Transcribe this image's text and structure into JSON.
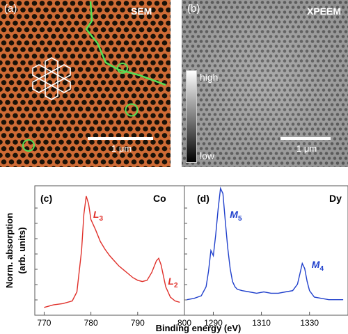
{
  "panel_a": {
    "label": "(a)",
    "technique": "SEM",
    "scale_label": "1 μm",
    "bg_color": "#cf6b35",
    "hole_color": "#1a1208"
  },
  "panel_b": {
    "label": "(b)",
    "technique": "XPEEM",
    "scale_label": "1 μm",
    "colorbar_high": "high",
    "colorbar_low": "low"
  },
  "chart_data": [
    {
      "type": "line",
      "panel_label": "(c)",
      "element": "Co",
      "xlabel": "Binding energy (eV)",
      "ylabel": "Norm. absorption (arb. units)",
      "xlim": [
        768,
        800
      ],
      "x_ticks": [
        "770",
        "780",
        "790",
        "800"
      ],
      "color": "#e0302a",
      "peaks": [
        {
          "label": "L",
          "sub": "3",
          "x": 779
        },
        {
          "label": "L",
          "sub": "2",
          "x": 795
        }
      ],
      "series": [
        {
          "x": [
            770,
            772,
            774,
            776,
            777,
            778,
            778.5,
            779,
            779.5,
            780,
            781,
            782,
            783,
            784,
            785,
            786,
            787,
            788,
            789,
            790,
            791,
            792,
            793,
            794,
            794.5,
            795,
            796,
            797,
            798,
            799
          ],
          "y": [
            0.06,
            0.08,
            0.09,
            0.11,
            0.18,
            0.5,
            0.78,
            0.92,
            0.86,
            0.74,
            0.66,
            0.57,
            0.51,
            0.46,
            0.42,
            0.38,
            0.35,
            0.32,
            0.29,
            0.27,
            0.26,
            0.27,
            0.33,
            0.42,
            0.44,
            0.39,
            0.22,
            0.14,
            0.11,
            0.1
          ]
        }
      ]
    },
    {
      "type": "line",
      "panel_label": "(d)",
      "element": "Dy",
      "xlim": [
        1278,
        1346
      ],
      "x_ticks": [
        "1290",
        "1310",
        "1330"
      ],
      "color": "#2040cc",
      "peaks": [
        {
          "label": "M",
          "sub": "5",
          "x": 1294
        },
        {
          "label": "M",
          "sub": "4",
          "x": 1328
        }
      ],
      "series": [
        {
          "x": [
            1279,
            1282,
            1285,
            1287,
            1288,
            1289,
            1290,
            1291,
            1292,
            1293,
            1294,
            1295,
            1296,
            1297,
            1298,
            1299,
            1300,
            1302,
            1305,
            1308,
            1311,
            1314,
            1317,
            1320,
            1323,
            1325,
            1326,
            1327,
            1328,
            1329,
            1330,
            1332,
            1335,
            1338,
            1341,
            1344
          ],
          "y": [
            0.12,
            0.13,
            0.15,
            0.22,
            0.34,
            0.5,
            0.46,
            0.62,
            0.82,
            0.98,
            0.94,
            0.72,
            0.52,
            0.36,
            0.26,
            0.22,
            0.2,
            0.19,
            0.18,
            0.17,
            0.18,
            0.17,
            0.17,
            0.18,
            0.19,
            0.24,
            0.32,
            0.4,
            0.36,
            0.26,
            0.19,
            0.14,
            0.13,
            0.12,
            0.12,
            0.12
          ]
        }
      ]
    }
  ]
}
